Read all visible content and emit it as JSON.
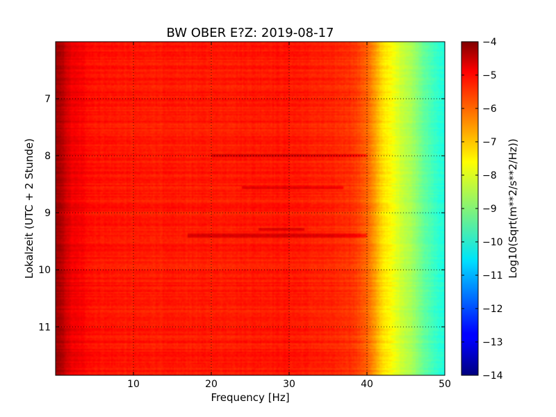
{
  "chart_data": {
    "type": "heatmap",
    "title": "BW OBER E?Z: 2019-08-17",
    "xlabel": "Frequency [Hz]",
    "ylabel": "Lokalzeit (UTC + 2 Stunde)",
    "colorbar_label": "Log10(Sqrt(m**2/s**2/Hz))",
    "x_range": [
      0,
      50
    ],
    "y_range": [
      6.0,
      11.85
    ],
    "y_inverted": true,
    "x_ticks": [
      10,
      20,
      30,
      40,
      50
    ],
    "y_ticks": [
      7,
      8,
      9,
      10,
      11
    ],
    "colorbar_range": [
      -14,
      -4
    ],
    "colorbar_ticks": [
      -4,
      -5,
      -6,
      -7,
      -8,
      -9,
      -10,
      -11,
      -12,
      -13,
      -14
    ],
    "colormap": "jet",
    "grid": true,
    "spectrum_profile": {
      "frequency_hz": [
        0,
        1,
        2,
        5,
        10,
        20,
        30,
        38,
        40,
        42,
        44,
        46,
        48,
        50
      ],
      "log10_value": [
        -4.3,
        -4.6,
        -5.1,
        -5.4,
        -5.5,
        -5.5,
        -5.45,
        -5.7,
        -6.2,
        -7.4,
        -8.1,
        -8.7,
        -9.5,
        -10.0
      ]
    },
    "strong_events": [
      {
        "time": 8.0,
        "freq_start": 20,
        "freq_end": 40
      },
      {
        "time": 8.55,
        "freq_start": 24,
        "freq_end": 37
      },
      {
        "time": 9.28,
        "freq_start": 26,
        "freq_end": 32
      },
      {
        "time": 9.4,
        "freq_start": 17,
        "freq_end": 40
      }
    ]
  }
}
